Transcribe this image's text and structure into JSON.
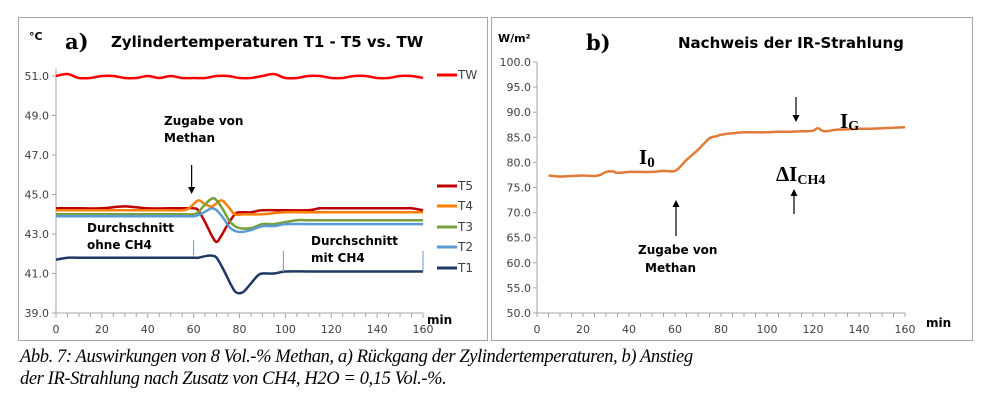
{
  "chart_data": [
    {
      "id": "a",
      "type": "line",
      "panel_letter": "a)",
      "title": "Zylindertemperaturen T1 - T5 vs. TW",
      "ylabel": "°C",
      "xlabel": "min",
      "xlim": [
        0,
        160
      ],
      "ylim": [
        39.0,
        51.0
      ],
      "xticks": [
        0,
        20,
        40,
        60,
        80,
        100,
        120,
        140,
        160
      ],
      "yticks": [
        "39.0",
        "41.0",
        "43.0",
        "45.0",
        "47.0",
        "49.0",
        "51.0"
      ],
      "grid": false,
      "legend_placement": "right",
      "series": [
        {
          "name": "TW",
          "color": "#ff0000",
          "x": [
            0,
            5,
            10,
            15,
            20,
            25,
            30,
            35,
            40,
            45,
            50,
            55,
            60,
            65,
            70,
            75,
            80,
            85,
            90,
            95,
            100,
            105,
            110,
            115,
            120,
            125,
            130,
            135,
            140,
            145,
            150,
            155,
            160
          ],
          "y": [
            51.0,
            51.1,
            50.9,
            50.9,
            51.0,
            51.0,
            50.9,
            50.9,
            51.0,
            50.9,
            51.0,
            50.9,
            50.9,
            50.9,
            51.0,
            51.0,
            50.9,
            50.9,
            51.0,
            51.1,
            50.9,
            50.9,
            51.0,
            51.0,
            50.9,
            50.9,
            51.0,
            51.0,
            50.9,
            50.9,
            51.0,
            51.0,
            50.9
          ]
        },
        {
          "name": "T5",
          "color": "#c00000",
          "x": [
            0,
            10,
            20,
            30,
            40,
            50,
            55,
            60,
            62,
            65,
            68,
            70,
            72,
            75,
            78,
            80,
            85,
            90,
            100,
            110,
            115,
            120,
            130,
            140,
            150,
            155,
            160
          ],
          "y": [
            44.3,
            44.3,
            44.3,
            44.4,
            44.3,
            44.3,
            44.3,
            44.3,
            44.2,
            43.6,
            42.9,
            42.6,
            42.9,
            43.5,
            44.0,
            44.1,
            44.1,
            44.2,
            44.2,
            44.2,
            44.3,
            44.3,
            44.3,
            44.3,
            44.3,
            44.3,
            44.2
          ]
        },
        {
          "name": "T4",
          "color": "#ff7f00",
          "x": [
            0,
            10,
            20,
            30,
            40,
            50,
            55,
            58,
            62,
            65,
            68,
            72,
            75,
            78,
            82,
            90,
            100,
            110,
            120,
            130,
            140,
            150,
            160
          ],
          "y": [
            44.2,
            44.2,
            44.2,
            44.2,
            44.2,
            44.2,
            44.2,
            44.3,
            44.7,
            44.5,
            44.4,
            44.7,
            44.4,
            44.0,
            44.0,
            44.0,
            44.1,
            44.1,
            44.1,
            44.1,
            44.1,
            44.1,
            44.1
          ]
        },
        {
          "name": "T3",
          "color": "#77a03b",
          "x": [
            0,
            10,
            20,
            30,
            40,
            50,
            55,
            60,
            62,
            65,
            68,
            70,
            73,
            76,
            80,
            85,
            90,
            95,
            100,
            105,
            110,
            120,
            130,
            140,
            150,
            160
          ],
          "y": [
            44.0,
            44.0,
            44.0,
            44.0,
            44.0,
            44.0,
            44.0,
            44.0,
            44.1,
            44.5,
            44.8,
            44.7,
            44.2,
            43.6,
            43.3,
            43.3,
            43.5,
            43.5,
            43.6,
            43.7,
            43.7,
            43.7,
            43.7,
            43.7,
            43.7,
            43.7
          ]
        },
        {
          "name": "T2",
          "color": "#5b9bd5",
          "x": [
            0,
            10,
            20,
            30,
            40,
            50,
            55,
            60,
            63,
            66,
            68,
            70,
            73,
            76,
            80,
            85,
            90,
            95,
            100,
            110,
            120,
            130,
            140,
            150,
            160
          ],
          "y": [
            43.9,
            43.9,
            43.9,
            43.9,
            43.9,
            43.9,
            43.9,
            43.9,
            44.0,
            44.2,
            44.3,
            44.2,
            43.8,
            43.3,
            43.1,
            43.2,
            43.4,
            43.4,
            43.5,
            43.5,
            43.5,
            43.5,
            43.5,
            43.5,
            43.5
          ]
        },
        {
          "name": "T1",
          "color": "#1f3864",
          "x": [
            0,
            5,
            10,
            20,
            30,
            40,
            50,
            55,
            60,
            62,
            66,
            68,
            70,
            73,
            76,
            78,
            80,
            82,
            85,
            88,
            90,
            95,
            100,
            110,
            120,
            130,
            140,
            150,
            160
          ],
          "y": [
            41.7,
            41.8,
            41.8,
            41.8,
            41.8,
            41.8,
            41.8,
            41.8,
            41.8,
            41.8,
            41.9,
            41.9,
            41.8,
            41.2,
            40.5,
            40.1,
            40.0,
            40.1,
            40.5,
            40.9,
            41.0,
            41.0,
            41.1,
            41.1,
            41.1,
            41.1,
            41.1,
            41.1,
            41.1
          ]
        }
      ],
      "annotations": {
        "event_label_line1": "Zugabe von",
        "event_label_line2": "Methan",
        "event_x": 60,
        "avg_before_line1": "Durchschnitt",
        "avg_before_line2": "ohne CH4",
        "avg_before_range": [
          0,
          60
        ],
        "avg_after_line1": "Durchschnitt",
        "avg_after_line2": "mit CH4",
        "avg_after_range": [
          100,
          160
        ]
      }
    },
    {
      "id": "b",
      "type": "line",
      "panel_letter": "b)",
      "title": "Nachweis der IR-Strahlung",
      "ylabel": "W/m²",
      "xlabel": "min",
      "xlim": [
        0,
        160
      ],
      "ylim": [
        50.0,
        100.0
      ],
      "xticks": [
        0,
        20,
        40,
        60,
        80,
        100,
        120,
        140,
        160
      ],
      "yticks": [
        "50.0",
        "55.0",
        "60.0",
        "65.0",
        "70.0",
        "75.0",
        "80.0",
        "85.0",
        "90.0",
        "95.0",
        "100.0"
      ],
      "grid": false,
      "series": [
        {
          "name": "IR",
          "color": "#e07b39",
          "x": [
            5,
            10,
            15,
            20,
            25,
            28,
            30,
            33,
            35,
            40,
            45,
            50,
            55,
            58,
            60,
            62,
            65,
            70,
            75,
            78,
            80,
            85,
            90,
            95,
            100,
            105,
            110,
            115,
            120,
            122,
            125,
            130,
            135,
            140,
            145,
            150,
            155,
            160
          ],
          "y": [
            77.4,
            77.2,
            77.3,
            77.4,
            77.3,
            77.6,
            78.1,
            78.2,
            77.9,
            78.1,
            78.1,
            78.1,
            78.3,
            78.2,
            78.3,
            79.0,
            80.5,
            82.5,
            84.8,
            85.2,
            85.5,
            85.8,
            86.0,
            86.0,
            86.0,
            86.1,
            86.1,
            86.2,
            86.3,
            86.8,
            86.2,
            86.5,
            86.6,
            86.7,
            86.7,
            86.8,
            86.9,
            87.0
          ]
        }
      ],
      "annotations": {
        "event_label_line1": "Zugabe von",
        "event_label_line2": "Methan",
        "event_x": 60,
        "i0_main": "I",
        "i0_sub": "0",
        "ig_main": "I",
        "ig_sub": "G",
        "delta_main": "ΔI",
        "delta_sub": "CH4",
        "delta_x": 110
      }
    }
  ],
  "caption": {
    "line1": "Abb. 7: Auswirkungen von 8 Vol.-% Methan, a) Rückgang der Zylindertemperaturen, b) Anstieg",
    "line2": "der IR-Strahlung nach Zusatz von CH4, H2O = 0,15 Vol.-%."
  }
}
